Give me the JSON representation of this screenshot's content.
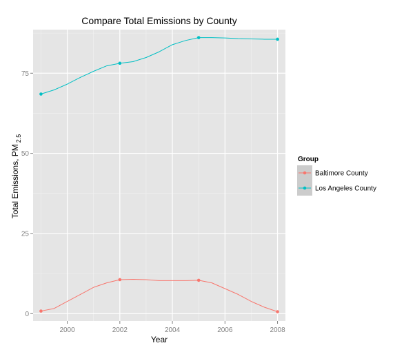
{
  "chart_data": {
    "type": "line",
    "title": "Compare Total Emissions by County",
    "xlabel": "Year",
    "ylabel": "Total Emissions, PM",
    "ylabel_subscript": "2.5",
    "x_ticks": [
      2000,
      2002,
      2004,
      2006,
      2008
    ],
    "y_ticks": [
      0,
      25,
      50,
      75
    ],
    "xlim": [
      1998.7,
      2008.3
    ],
    "ylim": [
      -2.3,
      88.6
    ],
    "legend_title": "Group",
    "legend_position": "right",
    "grid": true,
    "series": [
      {
        "name": "Baltimore County",
        "color": "#f8766d",
        "points": [
          {
            "x": 1999,
            "y": 0.8
          },
          {
            "x": 2002,
            "y": 10.6
          },
          {
            "x": 2005,
            "y": 10.4
          },
          {
            "x": 2008,
            "y": 0.6
          }
        ],
        "smooth": [
          {
            "x": 1999,
            "y": 0.8
          },
          {
            "x": 1999.5,
            "y": 1.6
          },
          {
            "x": 2000,
            "y": 3.8
          },
          {
            "x": 2000.5,
            "y": 6.0
          },
          {
            "x": 2001,
            "y": 8.2
          },
          {
            "x": 2001.5,
            "y": 9.6
          },
          {
            "x": 2002,
            "y": 10.6
          },
          {
            "x": 2002.5,
            "y": 10.7
          },
          {
            "x": 2003,
            "y": 10.6
          },
          {
            "x": 2003.5,
            "y": 10.3
          },
          {
            "x": 2004,
            "y": 10.3
          },
          {
            "x": 2004.5,
            "y": 10.3
          },
          {
            "x": 2005,
            "y": 10.4
          },
          {
            "x": 2005.5,
            "y": 9.6
          },
          {
            "x": 2006,
            "y": 7.8
          },
          {
            "x": 2006.5,
            "y": 6.0
          },
          {
            "x": 2007,
            "y": 3.8
          },
          {
            "x": 2007.5,
            "y": 2.0
          },
          {
            "x": 2008,
            "y": 0.6
          }
        ]
      },
      {
        "name": "Los Angeles County",
        "color": "#00bfc4",
        "points": [
          {
            "x": 1999,
            "y": 68.5
          },
          {
            "x": 2002,
            "y": 78.1
          },
          {
            "x": 2005,
            "y": 86.1
          },
          {
            "x": 2008,
            "y": 85.6
          }
        ],
        "smooth": [
          {
            "x": 1999,
            "y": 68.5
          },
          {
            "x": 1999.5,
            "y": 69.8
          },
          {
            "x": 2000,
            "y": 71.6
          },
          {
            "x": 2000.5,
            "y": 73.7
          },
          {
            "x": 2001,
            "y": 75.6
          },
          {
            "x": 2001.5,
            "y": 77.3
          },
          {
            "x": 2002,
            "y": 78.1
          },
          {
            "x": 2002.5,
            "y": 78.6
          },
          {
            "x": 2003,
            "y": 79.9
          },
          {
            "x": 2003.5,
            "y": 81.7
          },
          {
            "x": 2004,
            "y": 83.9
          },
          {
            "x": 2004.5,
            "y": 85.2
          },
          {
            "x": 2005,
            "y": 86.1
          },
          {
            "x": 2005.5,
            "y": 86.1
          },
          {
            "x": 2006,
            "y": 86.0
          },
          {
            "x": 2006.5,
            "y": 85.8
          },
          {
            "x": 2007,
            "y": 85.7
          },
          {
            "x": 2007.5,
            "y": 85.6
          },
          {
            "x": 2008,
            "y": 85.6
          }
        ]
      }
    ]
  },
  "colors": {
    "panel_background": "#e5e5e5",
    "grid_major": "#ffffff",
    "grid_minor": "#f2f2f2",
    "legend_key_background": "#cccccc"
  }
}
